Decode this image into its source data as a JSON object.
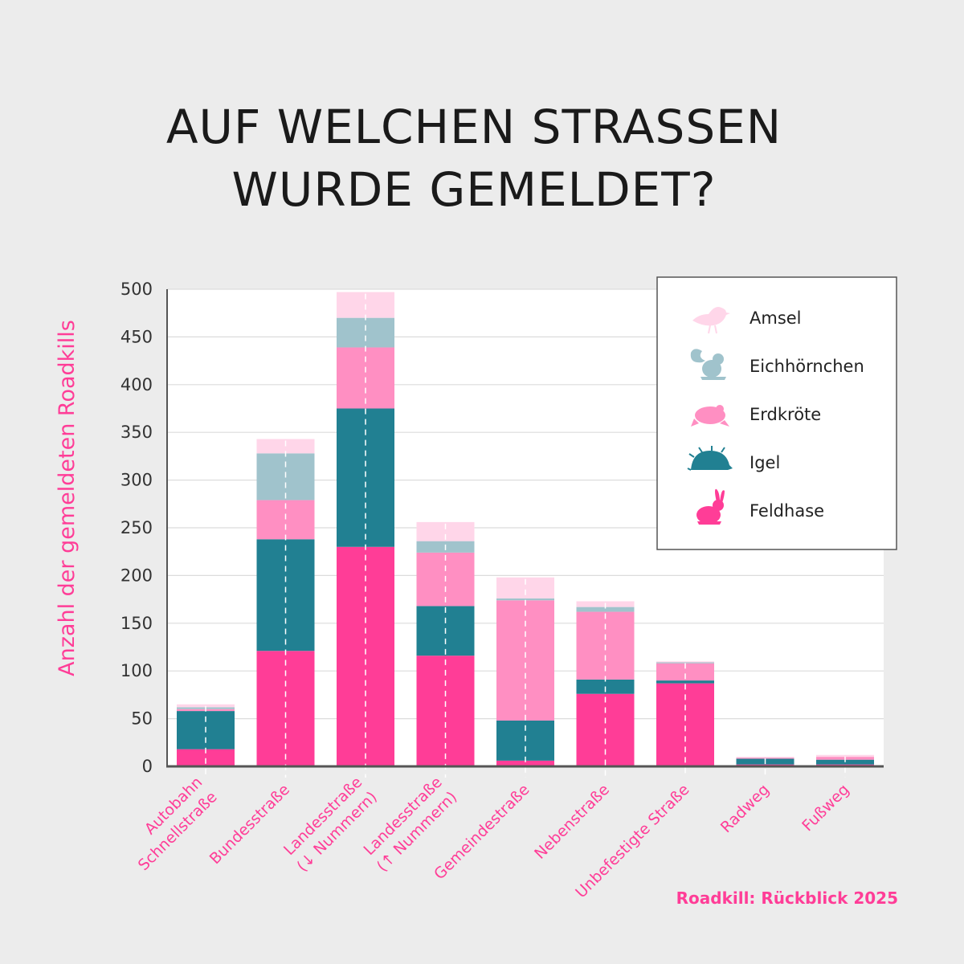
{
  "chart_data": {
    "type": "bar",
    "stacked": true,
    "title": [
      "AUF WELCHEN STRASSEN",
      "WURDE GEMELDET?"
    ],
    "ylabel": "Anzahl der gemeldeten Roadkills",
    "xlabel": "",
    "ylim": [
      0,
      500
    ],
    "yticks": [
      0,
      50,
      100,
      150,
      200,
      250,
      300,
      350,
      400,
      450,
      500
    ],
    "grid": true,
    "legend_position": "top-right",
    "categories": [
      [
        "Autobahn",
        "Schnellstraße"
      ],
      [
        "Bundesstraße"
      ],
      [
        "Landesstraße",
        "(↓ Nummern)"
      ],
      [
        "Landesstraße",
        "(↑ Nummern)"
      ],
      [
        "Gemeindestraße"
      ],
      [
        "Nebenstraße"
      ],
      [
        "Unbefestigte Straße"
      ],
      [
        "Radweg"
      ],
      [
        "Fußweg"
      ]
    ],
    "series": [
      {
        "name": "Feldhase",
        "icon": "hare-icon",
        "color": "#ff3d97",
        "values": [
          18,
          121,
          230,
          116,
          6,
          76,
          87,
          2,
          2
        ]
      },
      {
        "name": "Igel",
        "icon": "hedgehog-icon",
        "color": "#218092",
        "values": [
          40,
          117,
          145,
          52,
          42,
          15,
          3,
          6,
          5
        ]
      },
      {
        "name": "Erdkröte",
        "icon": "toad-icon",
        "color": "#ff8fc2",
        "values": [
          2,
          41,
          64,
          56,
          126,
          71,
          18,
          1,
          3
        ]
      },
      {
        "name": "Eichhörnchen",
        "icon": "squirrel-icon",
        "color": "#a0c3cc",
        "values": [
          2,
          49,
          31,
          12,
          2,
          5,
          1,
          0,
          0
        ]
      },
      {
        "name": "Amsel",
        "icon": "blackbird-icon",
        "color": "#ffd6e9",
        "values": [
          3,
          15,
          27,
          20,
          22,
          6,
          1,
          1,
          2
        ]
      }
    ],
    "legend_order": [
      "Amsel",
      "Eichhörnchen",
      "Erdkröte",
      "Igel",
      "Feldhase"
    ],
    "source": "Roadkill: Rückblick 2025"
  }
}
